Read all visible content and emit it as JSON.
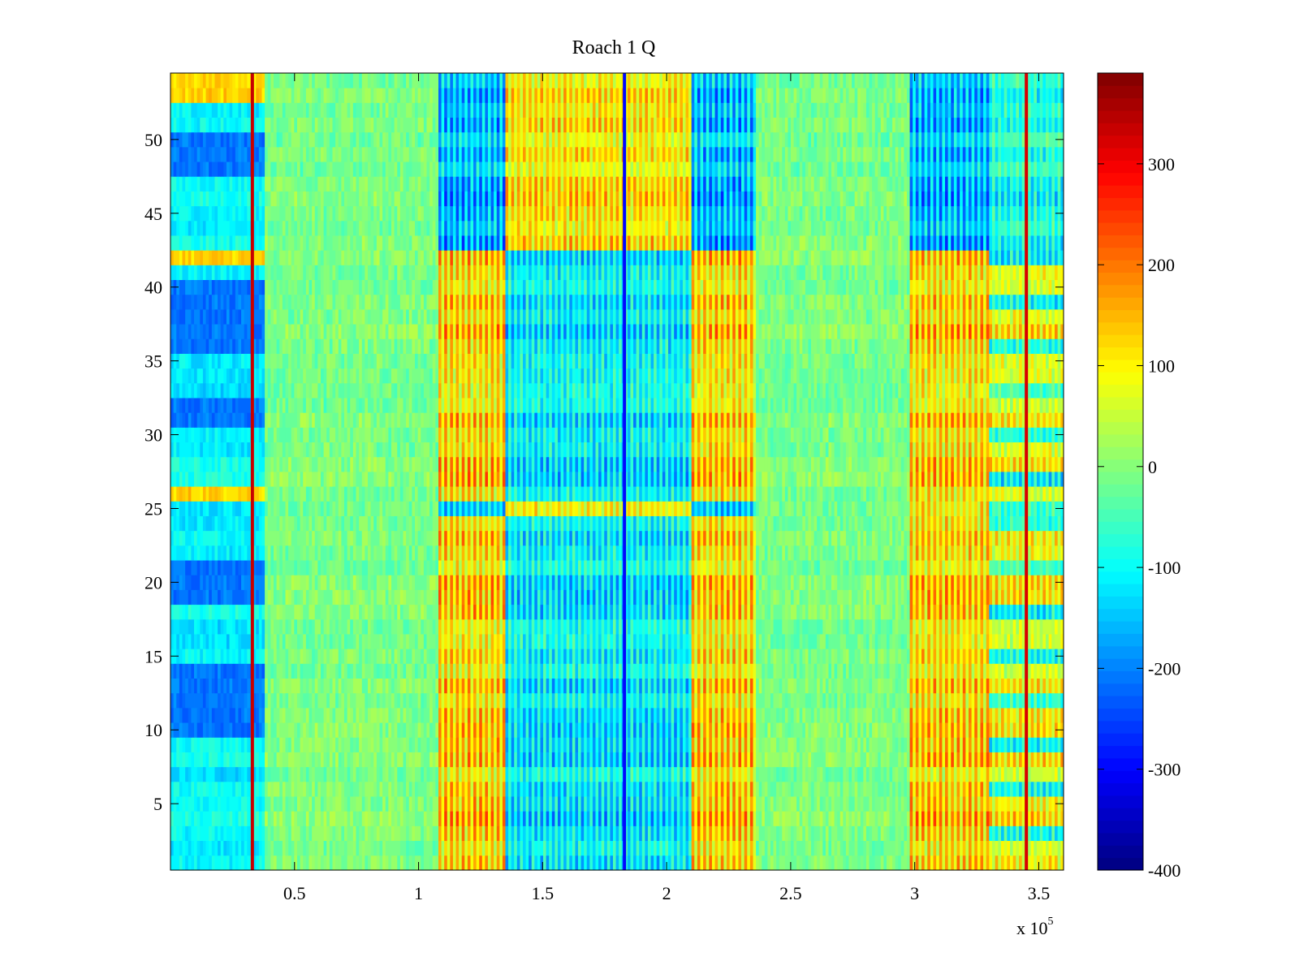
{
  "chart_data": {
    "type": "heatmap",
    "title": "Roach 1 Q",
    "xlabel": "",
    "ylabel": "",
    "x_multiplier_label": "x 10",
    "x_multiplier_exponent": "5",
    "xlim": [
      0.0,
      3.6
    ],
    "ylim": [
      0.5,
      54.5
    ],
    "xticks": [
      0.5,
      1,
      1.5,
      2,
      2.5,
      3,
      3.5
    ],
    "xtick_labels": [
      "0.5",
      "1",
      "1.5",
      "2",
      "2.5",
      "3",
      "3.5"
    ],
    "yticks": [
      5,
      10,
      15,
      20,
      25,
      30,
      35,
      40,
      45,
      50
    ],
    "ytick_labels": [
      "5",
      "10",
      "15",
      "20",
      "25",
      "30",
      "35",
      "40",
      "45",
      "50"
    ],
    "rows": 54,
    "colorbar": {
      "colormap": "jet",
      "clim": [
        -400,
        390
      ],
      "ticks": [
        300,
        200,
        100,
        0,
        -100,
        -200,
        -300,
        -400
      ],
      "tick_labels": [
        "300",
        "200",
        "100",
        "0",
        "-100",
        "-200",
        "-300",
        "-400"
      ]
    },
    "regions": [
      {
        "x": [
          0.0,
          0.38
        ],
        "pattern": "rowbands_cold",
        "note": "blue/cyan horizontal bands, warm rows 26 and 42 and 53-54"
      },
      {
        "x": [
          0.38,
          1.08
        ],
        "pattern": "neutral"
      },
      {
        "x": [
          1.08,
          1.35
        ],
        "pattern": "striped_warm",
        "flip_rows": [
          25,
          43,
          44,
          45,
          46,
          47,
          48,
          49,
          50,
          51,
          52,
          53,
          54
        ]
      },
      {
        "x": [
          1.35,
          2.1
        ],
        "pattern": "striped_cold",
        "flip_rows": [
          25,
          43,
          44,
          45,
          46,
          47,
          48,
          49,
          50,
          51,
          52,
          53,
          54
        ]
      },
      {
        "x": [
          2.1,
          2.36
        ],
        "pattern": "striped_warm",
        "flip_rows": [
          25,
          43,
          44,
          45,
          46,
          47,
          48,
          49,
          50,
          51,
          52,
          53,
          54
        ]
      },
      {
        "x": [
          2.36,
          2.98
        ],
        "pattern": "neutral"
      },
      {
        "x": [
          2.98,
          3.3
        ],
        "pattern": "striped_warm",
        "flip_rows": [
          43,
          44,
          45,
          46,
          47,
          48,
          49,
          50,
          51,
          52,
          53,
          54
        ]
      },
      {
        "x": [
          3.3,
          3.6
        ],
        "pattern": "striped_mixed",
        "flip_rows": [
          25,
          43,
          44,
          45,
          46,
          47,
          48,
          49,
          50,
          51,
          52,
          53,
          54
        ]
      }
    ],
    "vertical_lines": [
      {
        "x": 0.33,
        "value": 340
      },
      {
        "x": 1.83,
        "value": -300
      },
      {
        "x": 3.45,
        "value": 320
      }
    ]
  }
}
